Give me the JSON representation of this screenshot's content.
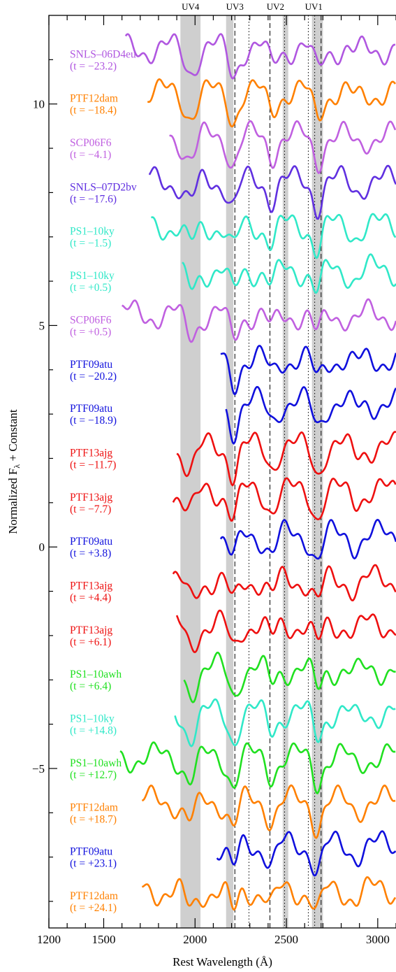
{
  "chart_data": {
    "type": "line",
    "xlabel": "Rest Wavelength (Å)",
    "ylabel_main": "Normalized F",
    "ylabel_sub": "λ",
    "ylabel_rest": " + Constant",
    "xlim": [
      1200,
      3100
    ],
    "ylim": [
      -8.6,
      12.0
    ],
    "x_ticks": [
      1200,
      1500,
      2000,
      2500,
      3000
    ],
    "y_ticks": [
      10,
      5,
      0,
      -5
    ],
    "uv_bands": [
      {
        "name": "UV4",
        "range": [
          1920,
          2030
        ]
      },
      {
        "name": "UV3",
        "range": [
          2170,
          2210
        ]
      },
      {
        "name": "UV2",
        "range": [
          2480,
          2510
        ]
      },
      {
        "name": "UV1",
        "range": [
          2640,
          2700
        ]
      }
    ],
    "dashed_lines": [
      2218,
      2410,
      2690
    ],
    "dotted_lines": [
      2295,
      2490,
      2620,
      2655
    ],
    "series": [
      {
        "name": "SNLS–06D4eu",
        "label": "(t = −23.2)",
        "color": "#b057e0",
        "y": 11.0,
        "x_range": [
          1620,
          3100
        ]
      },
      {
        "name": "PTF12dam",
        "label": "(t = −18.4)",
        "color": "#ff8000",
        "y": 10.0,
        "x_range": [
          1740,
          3100
        ]
      },
      {
        "name": "SCP06F6",
        "label": "(t = −4.1)",
        "color": "#c060e0",
        "y": 9.0,
        "x_range": [
          1860,
          3100
        ]
      },
      {
        "name": "SNLS–07D2bv",
        "label": "(t = −17.6)",
        "color": "#6030e0",
        "y": 8.0,
        "x_range": [
          1750,
          3100
        ]
      },
      {
        "name": "PS1–10ky",
        "label": "(t = −1.5)",
        "color": "#30e8c8",
        "y": 7.0,
        "x_range": [
          1760,
          3100
        ]
      },
      {
        "name": "PS1–10ky",
        "label": "(t = +0.5)",
        "color": "#30e8c8",
        "y": 6.0,
        "x_range": [
          1930,
          3100
        ]
      },
      {
        "name": "SCP06F6",
        "label": "(t = +0.5)",
        "color": "#c060e0",
        "y": 5.0,
        "x_range": [
          1600,
          3100
        ]
      },
      {
        "name": "PTF09atu",
        "label": "(t = −20.2)",
        "color": "#1010dd",
        "y": 4.0,
        "x_range": [
          2140,
          3100
        ]
      },
      {
        "name": "PTF09atu",
        "label": "(t = −18.9)",
        "color": "#1010dd",
        "y": 3.0,
        "x_range": [
          2170,
          3100
        ]
      },
      {
        "name": "PTF13ajg",
        "label": "(t = −11.7)",
        "color": "#ee1010",
        "y": 2.0,
        "x_range": [
          1900,
          3100
        ]
      },
      {
        "name": "PTF13ajg",
        "label": "(t = −7.7)",
        "color": "#ee1010",
        "y": 1.0,
        "x_range": [
          1880,
          3100
        ]
      },
      {
        "name": "PTF09atu",
        "label": "(t = +3.8)",
        "color": "#1010dd",
        "y": 0.0,
        "x_range": [
          2140,
          3100
        ]
      },
      {
        "name": "PTF13ajg",
        "label": "(t = +4.4)",
        "color": "#ee1010",
        "y": -1.0,
        "x_range": [
          1880,
          3100
        ]
      },
      {
        "name": "PTF13ajg",
        "label": "(t = +6.1)",
        "color": "#ee1010",
        "y": -2.0,
        "x_range": [
          1900,
          3100
        ]
      },
      {
        "name": "PS1–10awh",
        "label": "(t = +6.4)",
        "color": "#20e020",
        "y": -3.0,
        "x_range": [
          1940,
          3100
        ]
      },
      {
        "name": "PS1–10ky",
        "label": "(t = +14.8)",
        "color": "#30e8c8",
        "y": -4.0,
        "x_range": [
          1890,
          3100
        ]
      },
      {
        "name": "PS1–10awh",
        "label": "(t = +12.7)",
        "color": "#20e020",
        "y": -5.0,
        "x_range": [
          1590,
          3100
        ]
      },
      {
        "name": "PTF12dam",
        "label": "(t = +18.7)",
        "color": "#ff8000",
        "y": -6.0,
        "x_range": [
          1710,
          3100
        ]
      },
      {
        "name": "PTF09atu",
        "label": "(t = +23.1)",
        "color": "#1010dd",
        "y": -7.0,
        "x_range": [
          2120,
          3100
        ]
      },
      {
        "name": "PTF12dam",
        "label": "(t = +24.1)",
        "color": "#ff8000",
        "y": -8.0,
        "x_range": [
          1710,
          3100
        ]
      }
    ]
  }
}
